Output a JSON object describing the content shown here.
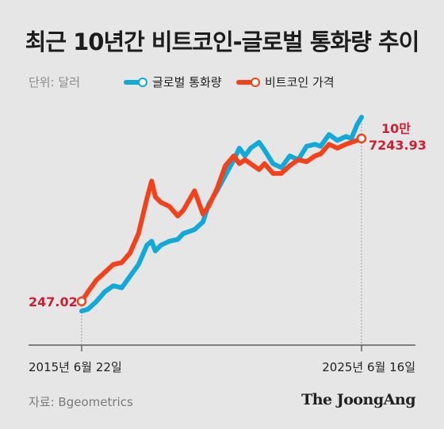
{
  "title": "최근 10년간 비트코인-글로벌 통화량 추이",
  "unit_label": "단위: 달러",
  "source": "자료: Bgeometrics",
  "logo": "The JoongAng",
  "colors": {
    "background": "#e6e6e6",
    "m2": "#12a8d8",
    "btc": "#f2421b",
    "annotation": "#cc1f33",
    "axis": "#444444"
  },
  "chart_data": {
    "type": "line",
    "x_start_label": "2015년 6월 22일",
    "x_end_label": "2025년 6월 16일",
    "start_value_label": "247.02",
    "end_value_label_top": "10만",
    "end_value_label_bottom": "7243.93",
    "x": [
      2015.47,
      2015.7,
      2016.0,
      2016.3,
      2016.6,
      2016.9,
      2017.2,
      2017.5,
      2017.8,
      2017.97,
      2018.1,
      2018.3,
      2018.6,
      2018.9,
      2019.1,
      2019.5,
      2019.8,
      2020.0,
      2020.3,
      2020.6,
      2020.9,
      2021.1,
      2021.3,
      2021.5,
      2021.8,
      2022.0,
      2022.3,
      2022.6,
      2022.9,
      2023.2,
      2023.5,
      2023.8,
      2024.0,
      2024.3,
      2024.6,
      2024.9,
      2025.1,
      2025.3,
      2025.46
    ],
    "series": [
      {
        "name": "글로벌 통화량",
        "color": "#12a8d8",
        "y_norm": [
          0.0,
          0.01,
          0.05,
          0.1,
          0.13,
          0.12,
          0.18,
          0.24,
          0.34,
          0.36,
          0.31,
          0.34,
          0.36,
          0.37,
          0.4,
          0.42,
          0.46,
          0.55,
          0.62,
          0.7,
          0.78,
          0.84,
          0.8,
          0.84,
          0.87,
          0.83,
          0.76,
          0.74,
          0.8,
          0.78,
          0.85,
          0.86,
          0.85,
          0.91,
          0.88,
          0.9,
          0.89,
          0.96,
          1.0
        ]
      },
      {
        "name": "비트코인 가격",
        "color": "#f2421b",
        "y_norm": [
          0.05,
          0.1,
          0.16,
          0.2,
          0.24,
          0.25,
          0.3,
          0.4,
          0.58,
          0.67,
          0.59,
          0.56,
          0.54,
          0.49,
          0.52,
          0.62,
          0.5,
          0.54,
          0.63,
          0.75,
          0.8,
          0.76,
          0.78,
          0.76,
          0.73,
          0.76,
          0.71,
          0.71,
          0.75,
          0.78,
          0.77,
          0.8,
          0.81,
          0.86,
          0.84,
          0.86,
          0.87,
          0.88,
          0.89
        ]
      }
    ]
  }
}
